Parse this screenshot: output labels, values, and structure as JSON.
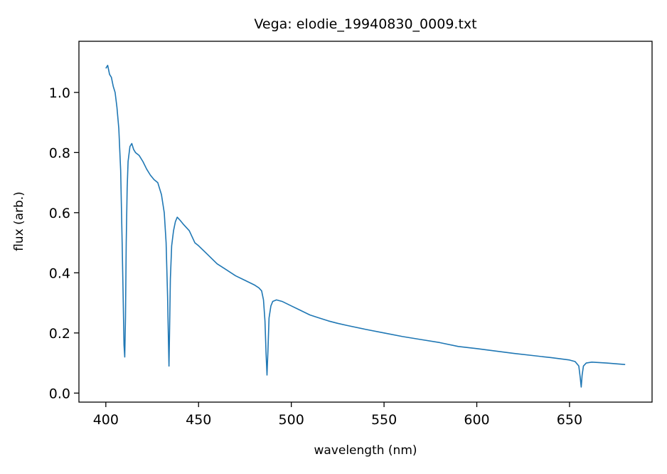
{
  "chart_data": {
    "type": "line",
    "title": "Vega: elodie_19940830_0009.txt",
    "xlabel": "wavelength (nm)",
    "ylabel": "flux (arb.)",
    "xlim": [
      385.5,
      694.5
    ],
    "ylim": [
      -0.03,
      1.17
    ],
    "xticks": [
      400,
      450,
      500,
      550,
      600,
      650
    ],
    "yticks": [
      0.0,
      0.2,
      0.4,
      0.6,
      0.8,
      1.0
    ],
    "ytick_labels": [
      "0.0",
      "0.2",
      "0.4",
      "0.6",
      "0.8",
      "1.0"
    ],
    "grid": false,
    "series": [
      {
        "color": "#1f77b4",
        "x": [
          400.0,
          401.0,
          402.0,
          403.0,
          404.0,
          405.0,
          406.0,
          407.0,
          408.0,
          408.8,
          409.4,
          409.8,
          410.2,
          410.6,
          411.0,
          411.5,
          412.0,
          413.0,
          414.0,
          415.0,
          416.0,
          418.0,
          420.0,
          422.0,
          424.0,
          426.0,
          428.0,
          430.0,
          431.5,
          432.5,
          433.3,
          433.8,
          434.05,
          434.3,
          434.8,
          435.5,
          436.5,
          437.5,
          438.5,
          440.0,
          442.0,
          445.0,
          448.0,
          450.0,
          455.0,
          460.0,
          465.0,
          470.0,
          475.0,
          480.0,
          482.5,
          484.0,
          485.0,
          485.8,
          486.4,
          486.9,
          487.4,
          488.0,
          489.0,
          490.0,
          492.0,
          495.0,
          500.0,
          505.0,
          510.0,
          515.0,
          520.0,
          525.0,
          530.0,
          540.0,
          550.0,
          560.0,
          570.0,
          580.0,
          590.0,
          600.0,
          610.0,
          620.0,
          630.0,
          640.0,
          650.0,
          653.0,
          655.0,
          655.8,
          656.3,
          656.8,
          657.5,
          659.0,
          662.0,
          670.0,
          680.0
        ],
        "y": [
          1.08,
          1.09,
          1.06,
          1.05,
          1.02,
          1.0,
          0.95,
          0.88,
          0.74,
          0.5,
          0.3,
          0.16,
          0.12,
          0.25,
          0.5,
          0.68,
          0.77,
          0.82,
          0.83,
          0.81,
          0.8,
          0.79,
          0.77,
          0.745,
          0.725,
          0.71,
          0.7,
          0.66,
          0.6,
          0.5,
          0.32,
          0.16,
          0.09,
          0.18,
          0.38,
          0.49,
          0.54,
          0.57,
          0.585,
          0.575,
          0.56,
          0.54,
          0.5,
          0.49,
          0.46,
          0.43,
          0.41,
          0.39,
          0.375,
          0.36,
          0.35,
          0.34,
          0.31,
          0.24,
          0.13,
          0.06,
          0.14,
          0.25,
          0.29,
          0.305,
          0.31,
          0.305,
          0.29,
          0.275,
          0.26,
          0.25,
          0.24,
          0.232,
          0.225,
          0.212,
          0.2,
          0.188,
          0.178,
          0.168,
          0.155,
          0.148,
          0.14,
          0.132,
          0.125,
          0.118,
          0.11,
          0.105,
          0.09,
          0.05,
          0.02,
          0.06,
          0.09,
          0.1,
          0.103,
          0.1,
          0.095
        ]
      }
    ]
  }
}
